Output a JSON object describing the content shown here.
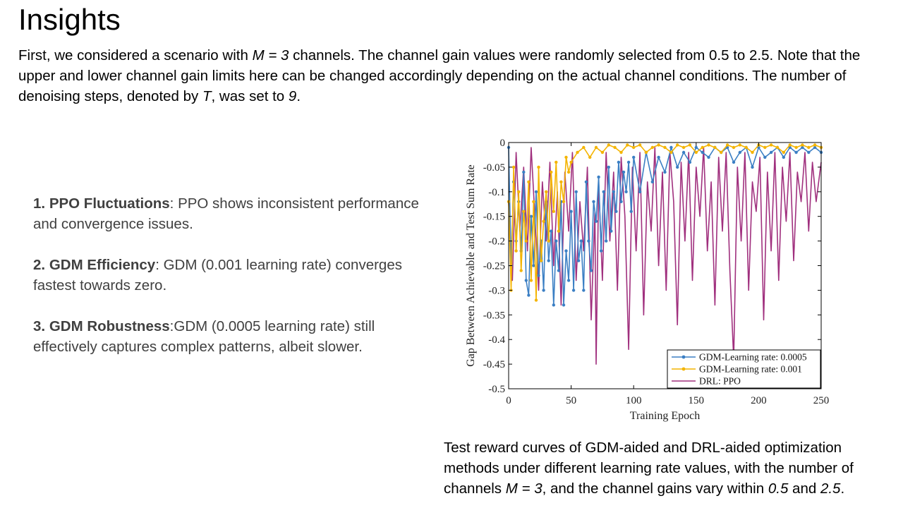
{
  "slide": {
    "title": "Insights",
    "intro": {
      "p1": "First, we considered a scenario with ",
      "m_var": "M = 3",
      "p2": " channels. The channel gain values were randomly selected from 0.5 to 2.5. Note that the upper and lower channel gain limits here can be changed accordingly depending on the actual channel conditions. The number of denoising steps, denoted by ",
      "t_var": "T",
      "p3": ", was set to ",
      "t_val": "9",
      "p4": "."
    },
    "insights": [
      {
        "num": "1.",
        "head": "PPO Fluctuations",
        "text": ": PPO shows inconsistent performance and convergence issues."
      },
      {
        "num": "2.",
        "head": "GDM Efficiency",
        "text": ": GDM (0.001 learning rate) converges fastest towards zero."
      },
      {
        "num": "3.",
        "head": "GDM Robustness",
        "text": ":GDM (0.0005 learning rate) still effectively captures complex patterns, albeit slower."
      }
    ],
    "caption": {
      "p1": "Test reward curves of GDM-aided and DRL-aided optimization methods under different learning rate values, with the number of channels ",
      "m_var": "M = 3",
      "p2": ", and the channel gains vary within ",
      "g_low": "0.5",
      "p3": " and ",
      "g_high": "2.5",
      "p4": "."
    }
  },
  "chart_data": {
    "type": "line",
    "xlabel": "Training Epoch",
    "ylabel": "Gap Between Achievable and Test Sum Rate",
    "xlim": [
      0,
      250
    ],
    "ylim": [
      -0.5,
      0
    ],
    "xticks": [
      0,
      50,
      100,
      150,
      200,
      250
    ],
    "yticks": [
      0,
      -0.05,
      -0.1,
      -0.15,
      -0.2,
      -0.25,
      -0.3,
      -0.35,
      -0.4,
      -0.45,
      -0.5
    ],
    "xtick_labels": [
      "0",
      "50",
      "100",
      "150",
      "200",
      "250"
    ],
    "ytick_labels": [
      "0",
      "-0.05",
      "-0.1",
      "-0.15",
      "-0.2",
      "-0.25",
      "-0.3",
      "-0.35",
      "-0.4",
      "-0.45",
      "-0.5"
    ],
    "legend_position": "bottom-right",
    "grid": false,
    "series": [
      {
        "name": "GDM-Learning rate: 0.0005",
        "color": "#3b7fc4",
        "marker": "dot",
        "x": [
          0,
          2,
          4,
          6,
          8,
          10,
          12,
          14,
          16,
          18,
          20,
          22,
          24,
          26,
          28,
          30,
          32,
          34,
          36,
          38,
          40,
          42,
          44,
          46,
          48,
          50,
          52,
          54,
          56,
          58,
          60,
          62,
          64,
          66,
          68,
          70,
          72,
          74,
          76,
          78,
          80,
          82,
          84,
          86,
          88,
          90,
          92,
          94,
          96,
          98,
          100,
          105,
          110,
          115,
          120,
          125,
          130,
          135,
          140,
          145,
          150,
          155,
          160,
          165,
          170,
          175,
          180,
          185,
          190,
          195,
          200,
          205,
          210,
          215,
          220,
          225,
          230,
          235,
          240,
          245,
          250
        ],
        "y": [
          -0.01,
          -0.25,
          -0.08,
          -0.2,
          -0.12,
          -0.22,
          -0.06,
          -0.28,
          -0.31,
          -0.15,
          -0.25,
          -0.1,
          -0.27,
          -0.2,
          -0.3,
          -0.12,
          -0.24,
          -0.18,
          -0.33,
          -0.2,
          -0.26,
          -0.12,
          -0.33,
          -0.22,
          -0.28,
          -0.14,
          -0.3,
          -0.1,
          -0.24,
          -0.2,
          -0.3,
          -0.08,
          -0.2,
          -0.26,
          -0.12,
          -0.16,
          -0.07,
          -0.22,
          -0.1,
          -0.2,
          -0.05,
          -0.18,
          -0.1,
          -0.14,
          -0.04,
          -0.12,
          -0.06,
          -0.1,
          -0.04,
          -0.14,
          -0.03,
          -0.1,
          -0.02,
          -0.08,
          -0.03,
          -0.06,
          -0.01,
          -0.05,
          -0.02,
          -0.04,
          -0.01,
          -0.02,
          -0.03,
          -0.01,
          -0.02,
          -0.01,
          -0.04,
          -0.02,
          -0.01,
          -0.05,
          -0.01,
          -0.03,
          -0.02,
          -0.01,
          -0.03,
          -0.01,
          -0.02,
          -0.01,
          -0.02,
          -0.01,
          -0.02
        ]
      },
      {
        "name": "GDM-Learning rate: 0.001",
        "color": "#f4b400",
        "marker": "dot",
        "x": [
          0,
          2,
          4,
          6,
          8,
          10,
          12,
          14,
          16,
          18,
          20,
          22,
          24,
          26,
          28,
          30,
          32,
          34,
          36,
          38,
          40,
          42,
          44,
          46,
          48,
          50,
          55,
          60,
          65,
          70,
          75,
          80,
          85,
          90,
          95,
          100,
          105,
          110,
          115,
          120,
          125,
          130,
          135,
          140,
          145,
          150,
          155,
          160,
          165,
          170,
          175,
          180,
          185,
          190,
          195,
          200,
          205,
          210,
          215,
          220,
          225,
          230,
          235,
          240,
          245,
          250
        ],
        "y": [
          -0.12,
          -0.3,
          -0.05,
          -0.22,
          -0.1,
          -0.26,
          -0.14,
          -0.2,
          -0.08,
          -0.28,
          -0.12,
          -0.32,
          -0.05,
          -0.24,
          -0.16,
          -0.1,
          -0.2,
          -0.06,
          -0.14,
          -0.04,
          -0.18,
          -0.08,
          -0.12,
          -0.03,
          -0.06,
          -0.04,
          -0.02,
          -0.01,
          -0.03,
          -0.01,
          -0.02,
          -0.005,
          -0.01,
          -0.02,
          -0.005,
          -0.01,
          -0.005,
          -0.02,
          -0.01,
          -0.005,
          -0.01,
          -0.02,
          -0.005,
          -0.01,
          -0.005,
          -0.02,
          -0.01,
          -0.005,
          -0.01,
          -0.02,
          -0.005,
          -0.01,
          -0.005,
          -0.01,
          -0.02,
          -0.005,
          -0.01,
          -0.005,
          -0.01,
          -0.02,
          -0.005,
          -0.01,
          -0.005,
          -0.01,
          -0.005,
          -0.01
        ]
      },
      {
        "name": "DRL: PPO",
        "color": "#a0307e",
        "marker": "none",
        "x": [
          0,
          3,
          6,
          9,
          12,
          15,
          18,
          21,
          24,
          27,
          30,
          33,
          36,
          39,
          42,
          45,
          48,
          51,
          54,
          57,
          60,
          63,
          66,
          69,
          70,
          72,
          75,
          78,
          81,
          84,
          87,
          90,
          93,
          96,
          99,
          102,
          105,
          108,
          111,
          114,
          117,
          120,
          123,
          126,
          129,
          132,
          135,
          138,
          141,
          144,
          147,
          150,
          153,
          156,
          159,
          162,
          165,
          168,
          171,
          174,
          177,
          180,
          183,
          186,
          189,
          192,
          195,
          198,
          201,
          204,
          207,
          210,
          213,
          216,
          219,
          222,
          225,
          228,
          231,
          234,
          237,
          240,
          243,
          246,
          250
        ],
        "y": [
          -0.12,
          -0.28,
          -0.02,
          -0.18,
          -0.05,
          -0.22,
          -0.01,
          -0.15,
          -0.3,
          -0.08,
          -0.2,
          -0.04,
          -0.25,
          -0.1,
          -0.33,
          -0.06,
          -0.18,
          -0.02,
          -0.28,
          -0.12,
          -0.22,
          -0.05,
          -0.36,
          -0.14,
          -0.45,
          -0.08,
          -0.28,
          -0.02,
          -0.2,
          -0.06,
          -0.3,
          -0.03,
          -0.15,
          -0.42,
          -0.05,
          -0.22,
          -0.02,
          -0.35,
          -0.08,
          -0.18,
          -0.01,
          -0.25,
          -0.06,
          -0.3,
          -0.02,
          -0.12,
          -0.37,
          -0.04,
          -0.2,
          -0.02,
          -0.28,
          -0.05,
          -0.15,
          -0.01,
          -0.22,
          -0.08,
          -0.33,
          -0.03,
          -0.18,
          -0.02,
          -0.26,
          -0.44,
          -0.05,
          -0.2,
          -0.02,
          -0.3,
          -0.08,
          -0.14,
          -0.03,
          -0.36,
          -0.06,
          -0.22,
          -0.02,
          -0.28,
          -0.05,
          -0.16,
          -0.02,
          -0.24,
          -0.06,
          -0.12,
          -0.02,
          -0.18,
          -0.04,
          -0.12,
          -0.04
        ]
      }
    ]
  }
}
